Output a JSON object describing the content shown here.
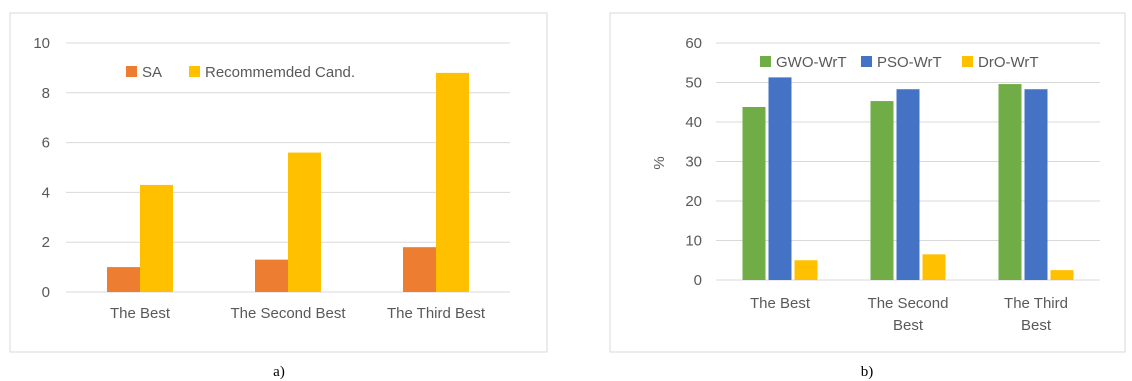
{
  "charts": [
    {
      "caption": "a)",
      "chart_data": {
        "type": "bar",
        "categories": [
          "The Best",
          "The Second Best",
          "The Third Best"
        ],
        "category_lines": [
          [
            "The Best"
          ],
          [
            "The Second Best"
          ],
          [
            "The Third Best"
          ]
        ],
        "series": [
          {
            "name": "SA",
            "color": "#ED7D31",
            "values": [
              1.0,
              1.3,
              1.8
            ]
          },
          {
            "name": "Recommemded Cand.",
            "color": "#FFC000",
            "values": [
              4.3,
              5.6,
              8.8
            ]
          }
        ],
        "ylim": [
          0,
          10
        ],
        "yticks": [
          "0",
          "2",
          "4",
          "6",
          "8",
          "10"
        ],
        "ylabel": "",
        "grid": true,
        "legend_position": "top"
      }
    },
    {
      "caption": "b)",
      "chart_data": {
        "type": "bar",
        "categories": [
          "The Best",
          "The Second Best",
          "The Third Best"
        ],
        "category_lines": [
          [
            "The Best"
          ],
          [
            "The Second",
            "Best"
          ],
          [
            "The Third",
            "Best"
          ]
        ],
        "series": [
          {
            "name": "GWO-WrT",
            "color": "#70AD47",
            "values": [
              43.8,
              45.3,
              49.6
            ]
          },
          {
            "name": "PSO-WrT",
            "color": "#4472C4",
            "values": [
              51.3,
              48.3,
              48.3
            ]
          },
          {
            "name": "DrO-WrT",
            "color": "#FFC000",
            "values": [
              5.0,
              6.5,
              2.5
            ]
          }
        ],
        "ylim": [
          0,
          60
        ],
        "yticks": [
          "0",
          "10",
          "20",
          "30",
          "40",
          "50",
          "60"
        ],
        "ylabel": "%",
        "grid": true,
        "legend_position": "top"
      }
    }
  ]
}
